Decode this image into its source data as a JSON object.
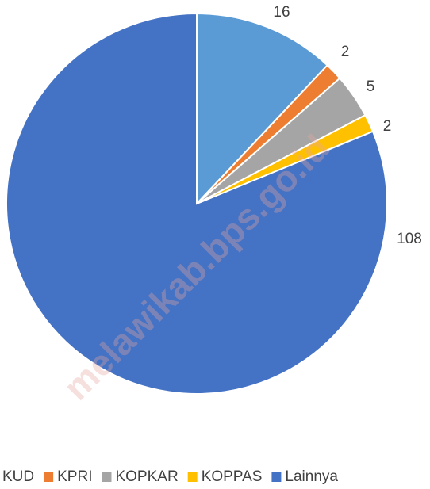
{
  "chart_data": {
    "type": "pie",
    "categories": [
      "KUD",
      "KPRI",
      "KOPKAR",
      "KOPPAS",
      "Lainnya"
    ],
    "values": [
      16,
      2,
      5,
      2,
      108
    ],
    "colors": [
      "#5b9bd5",
      "#ed7d31",
      "#a5a5a5",
      "#ffc000",
      "#4472c4"
    ],
    "legend": "bottom"
  },
  "watermark": "melawikab.bps.go.id"
}
